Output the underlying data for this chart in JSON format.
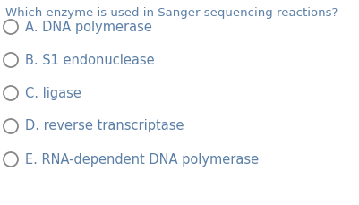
{
  "background_color": "#ffffff",
  "question": "Which enzyme is used in Sanger sequencing reactions?",
  "question_color": "#5b7fa6",
  "options": [
    "A. DNA polymerase",
    "B. S1 endonuclease",
    "C. ligase",
    "D. reverse transcriptase",
    "E. RNA-dependent DNA polymerase"
  ],
  "option_color": "#5b7fa6",
  "circle_color": "#888888",
  "question_fontsize": 9.5,
  "option_fontsize": 10.5,
  "figwidth": 4.02,
  "figheight": 2.29,
  "dpi": 100
}
